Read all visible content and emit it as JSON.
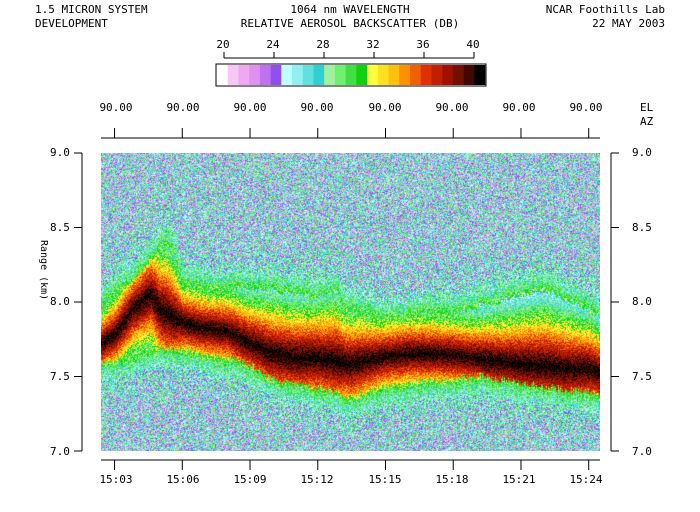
{
  "header": {
    "system_line1": "1.5 MICRON SYSTEM",
    "system_line2": "DEVELOPMENT",
    "wavelength": "1064 nm WAVELENGTH",
    "title": "RELATIVE AEROSOL BACKSCATTER (DB)",
    "site": "NCAR Foothills Lab",
    "date": "22 MAY 2003"
  },
  "colorbar": {
    "ticks": [
      "20",
      "24",
      "28",
      "32",
      "36",
      "40"
    ],
    "range": [
      20,
      40
    ],
    "colors": [
      "#ffffff",
      "#f8c8f4",
      "#f0a8f0",
      "#e090f0",
      "#c070f0",
      "#9050f0",
      "#c0ffff",
      "#90f0f0",
      "#60e0e0",
      "#30d0d0",
      "#a0f0a0",
      "#70f070",
      "#40e040",
      "#10d010",
      "#ffff40",
      "#ffe020",
      "#ffc010",
      "#ff9000",
      "#f06000",
      "#e03000",
      "#c02000",
      "#a01000",
      "#701000",
      "#400800",
      "#000000"
    ]
  },
  "top_axis": {
    "el_label": "EL",
    "az_label": "AZ",
    "angles": [
      "90.00",
      "90.00",
      "90.00",
      "90.00",
      "90.00",
      "90.00",
      "90.00",
      "90.00"
    ]
  },
  "chart_data": {
    "type": "heatmap",
    "x_unit": "time",
    "xlabel": "",
    "ylabel": "Range (km)",
    "x_ticks": [
      "15:03",
      "15:06",
      "15:09",
      "15:12",
      "15:15",
      "15:18",
      "15:21",
      "15:24"
    ],
    "x_tick_minutes": [
      3,
      6,
      9,
      12,
      15,
      18,
      21,
      24
    ],
    "x_range_minutes": [
      2.4,
      24.5
    ],
    "y_ticks": [
      "7.0",
      "7.5",
      "8.0",
      "8.5",
      "9.0"
    ],
    "y_tick_values": [
      7.0,
      7.5,
      8.0,
      8.5,
      9.0
    ],
    "ylim": [
      7.0,
      9.0
    ],
    "value_range_db": [
      20,
      40
    ],
    "layer_bottom_km": [
      [
        2.4,
        7.58
      ],
      [
        3.0,
        7.6
      ],
      [
        4.0,
        7.66
      ],
      [
        5.0,
        7.7
      ],
      [
        6.0,
        7.68
      ],
      [
        7.0,
        7.64
      ],
      [
        8.0,
        7.62
      ],
      [
        9.0,
        7.58
      ],
      [
        10.0,
        7.48
      ],
      [
        11.0,
        7.45
      ],
      [
        12.0,
        7.42
      ],
      [
        12.8,
        7.4
      ],
      [
        13.5,
        7.35
      ],
      [
        14.0,
        7.38
      ],
      [
        15.0,
        7.43
      ],
      [
        16.0,
        7.45
      ],
      [
        17.0,
        7.47
      ],
      [
        18.0,
        7.48
      ],
      [
        19.0,
        7.5
      ],
      [
        20.0,
        7.48
      ],
      [
        21.0,
        7.46
      ],
      [
        22.0,
        7.43
      ],
      [
        23.0,
        7.41
      ],
      [
        24.0,
        7.4
      ],
      [
        24.5,
        7.36
      ]
    ],
    "layer_top_km": [
      [
        2.4,
        7.95
      ],
      [
        3.0,
        8.05
      ],
      [
        3.8,
        8.15
      ],
      [
        4.6,
        8.28
      ],
      [
        5.2,
        8.4
      ],
      [
        5.6,
        8.33
      ],
      [
        6.0,
        8.12
      ],
      [
        7.0,
        8.08
      ],
      [
        8.0,
        8.08
      ],
      [
        9.0,
        8.1
      ],
      [
        10.0,
        8.08
      ],
      [
        11.0,
        8.05
      ],
      [
        12.0,
        8.03
      ],
      [
        12.8,
        8.08
      ],
      [
        13.2,
        7.95
      ],
      [
        14.0,
        7.92
      ],
      [
        15.0,
        7.88
      ],
      [
        16.0,
        7.9
      ],
      [
        17.0,
        7.92
      ],
      [
        18.0,
        7.92
      ],
      [
        19.0,
        7.96
      ],
      [
        20.0,
        8.0
      ],
      [
        21.0,
        8.05
      ],
      [
        22.0,
        8.08
      ],
      [
        23.0,
        8.02
      ],
      [
        24.0,
        7.95
      ],
      [
        24.5,
        7.88
      ]
    ],
    "layer_core_km": [
      [
        2.4,
        7.72
      ],
      [
        3.0,
        7.78
      ],
      [
        3.8,
        7.95
      ],
      [
        4.6,
        8.05
      ],
      [
        5.0,
        7.95
      ],
      [
        6.0,
        7.86
      ],
      [
        7.0,
        7.82
      ],
      [
        8.0,
        7.8
      ],
      [
        9.0,
        7.72
      ],
      [
        10.0,
        7.65
      ],
      [
        11.0,
        7.62
      ],
      [
        12.0,
        7.62
      ],
      [
        12.8,
        7.6
      ],
      [
        13.5,
        7.58
      ],
      [
        14.0,
        7.6
      ],
      [
        15.0,
        7.63
      ],
      [
        16.0,
        7.65
      ],
      [
        17.0,
        7.65
      ],
      [
        18.0,
        7.64
      ],
      [
        19.0,
        7.62
      ],
      [
        20.0,
        7.6
      ],
      [
        21.0,
        7.58
      ],
      [
        22.0,
        7.57
      ],
      [
        23.0,
        7.55
      ],
      [
        24.0,
        7.55
      ],
      [
        24.5,
        7.52
      ]
    ],
    "background_db": [
      22,
      30
    ],
    "layer_peak_db": 40
  }
}
